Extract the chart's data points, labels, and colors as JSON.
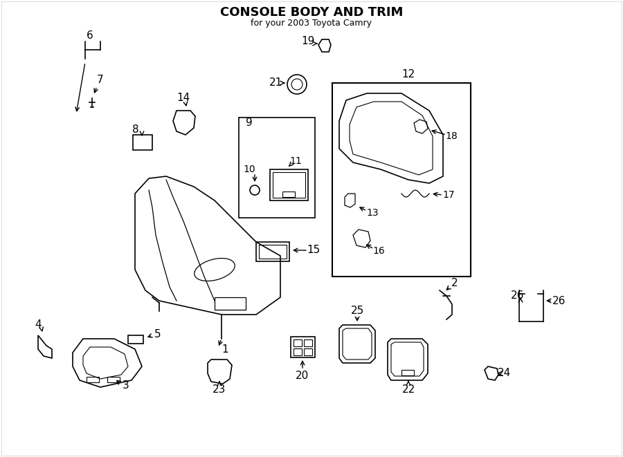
{
  "title": "CONSOLE BODY AND TRIM",
  "subtitle": "for your 2003 Toyota Camry",
  "bg_color": "#ffffff",
  "line_color": "#000000",
  "text_color": "#000000",
  "fig_width": 9.0,
  "fig_height": 6.61,
  "dpi": 100
}
